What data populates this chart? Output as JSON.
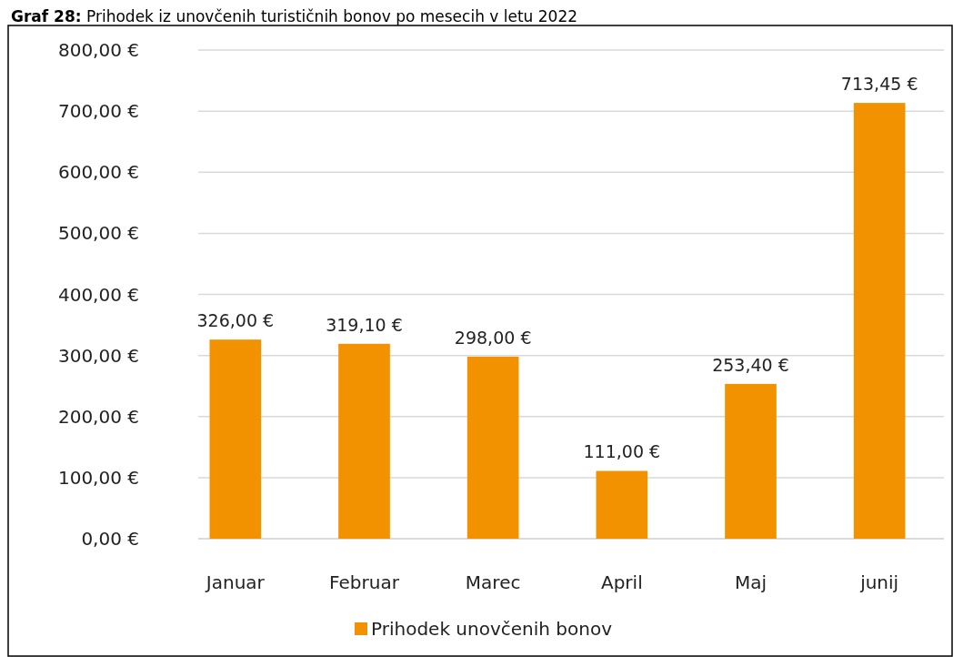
{
  "chart_data": {
    "type": "bar",
    "title": "Graf 28: Prihodek iz unovčenih turističnih bonov po mesecih v letu 2022",
    "categories": [
      "Januar",
      "Februar",
      "Marec",
      "April",
      "Maj",
      "junij"
    ],
    "series": [
      {
        "name": "Prihodek unovčenih bonov",
        "color": "#f39200",
        "values": [
          326.0,
          319.1,
          298.0,
          111.0,
          253.4,
          713.45
        ],
        "value_labels": [
          "326,00 €",
          "319,10 €",
          "298,00 €",
          "111,00 €",
          "253,40 €",
          "713,45 €"
        ]
      }
    ],
    "ylim": [
      0,
      800
    ],
    "yticks": [
      {
        "value": 0,
        "label": "0,00 €"
      },
      {
        "value": 100,
        "label": "100,00 €"
      },
      {
        "value": 200,
        "label": "200,00 €"
      },
      {
        "value": 300,
        "label": "300,00 €"
      },
      {
        "value": 400,
        "label": "400,00 €"
      },
      {
        "value": 500,
        "label": "500,00 €"
      },
      {
        "value": 600,
        "label": "600,00 €"
      },
      {
        "value": 700,
        "label": "700,00 €"
      },
      {
        "value": 800,
        "label": "800,00 €"
      }
    ],
    "grid": "y",
    "legend": "bottom"
  }
}
